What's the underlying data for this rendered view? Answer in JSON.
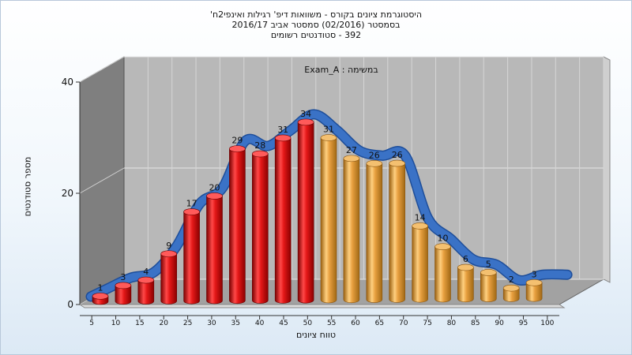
{
  "titles": {
    "line1": "היסטוגרמת ציונים בקורס - משוואות דיפ' רגילות ואינפי2ח'",
    "line2": "בסמסטר  (02/2016)  סמסטר אביב 2016/17",
    "line3": "392 - סטודנטים רשומים"
  },
  "chart_data": {
    "type": "bar",
    "title": "Exam_A : במשימה",
    "xlabel": "טווח ציונים",
    "ylabel": "מספר סטודנטים",
    "ylim": [
      0,
      40
    ],
    "yticks": [
      0,
      20,
      40
    ],
    "categories": [
      "5",
      "10",
      "15",
      "20",
      "25",
      "30",
      "35",
      "40",
      "45",
      "50",
      "55",
      "60",
      "65",
      "70",
      "75",
      "80",
      "85",
      "90",
      "95",
      "100"
    ],
    "values": [
      1,
      3,
      4,
      9,
      17,
      20,
      29,
      28,
      31,
      34,
      31,
      27,
      26,
      26,
      14,
      10,
      6,
      5,
      2,
      3
    ],
    "bar_colors": [
      "#e01818",
      "#e01818",
      "#e01818",
      "#e01818",
      "#e01818",
      "#e01818",
      "#e01818",
      "#e01818",
      "#e01818",
      "#e01818",
      "#e8a040",
      "#e8a040",
      "#e8a040",
      "#e8a040",
      "#e8a040",
      "#e8a040",
      "#e8a040",
      "#e8a040",
      "#e8a040",
      "#e8a040"
    ],
    "curve_color": "#3a72c6",
    "grid": true
  }
}
